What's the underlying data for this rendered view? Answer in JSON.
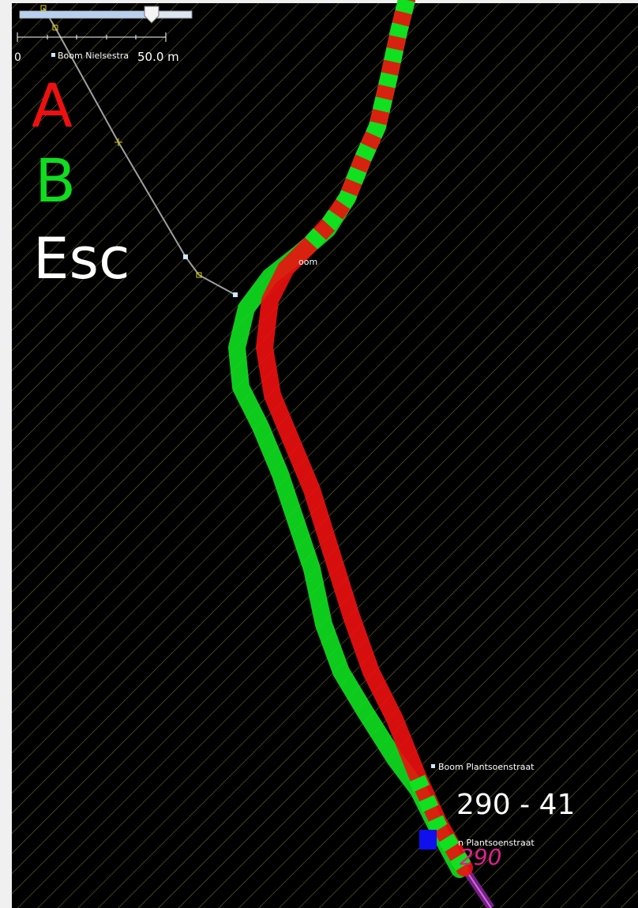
{
  "scale": {
    "start": "0",
    "end": "50.0 m"
  },
  "keys": [
    "A",
    "B",
    "Esc"
  ],
  "labels": [
    "Boom Nielsestra",
    "oom",
    "Boom Plantsoenstraat",
    "n Plantsoenstraat"
  ],
  "route_ref": "290 - 41",
  "route_number": "290"
}
